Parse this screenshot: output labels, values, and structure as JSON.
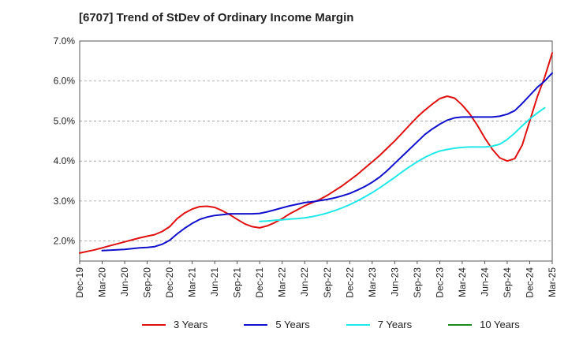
{
  "chart_data": {
    "type": "line",
    "title": "[6707]  Trend of StDev of Ordinary Income Margin",
    "xlabel": "",
    "ylabel": "",
    "x_ticks": [
      "Dec-19",
      "Mar-20",
      "Jun-20",
      "Sep-20",
      "Dec-20",
      "Mar-21",
      "Jun-21",
      "Sep-21",
      "Dec-21",
      "Mar-22",
      "Jun-22",
      "Sep-22",
      "Dec-22",
      "Mar-23",
      "Jun-23",
      "Sep-23",
      "Dec-23",
      "Mar-24",
      "Jun-24",
      "Sep-24",
      "Dec-24",
      "Mar-25"
    ],
    "y_ticks": [
      "2.0%",
      "3.0%",
      "4.0%",
      "5.0%",
      "6.0%",
      "7.0%"
    ],
    "ylim": [
      1.5,
      7.0
    ],
    "grid": "horizontal dashed",
    "legend_position": "bottom",
    "series": [
      {
        "name": "3 Years",
        "color": "#e01010",
        "points": [
          [
            "Dec-19",
            1.7
          ],
          [
            "Jan-20",
            1.74
          ],
          [
            "Feb-20",
            1.78
          ],
          [
            "Mar-20",
            1.83
          ],
          [
            "Apr-20",
            1.88
          ],
          [
            "May-20",
            1.93
          ],
          [
            "Jun-20",
            1.98
          ],
          [
            "Jul-20",
            2.03
          ],
          [
            "Aug-20",
            2.08
          ],
          [
            "Sep-20",
            2.12
          ],
          [
            "Oct-20",
            2.16
          ],
          [
            "Nov-20",
            2.24
          ],
          [
            "Dec-20",
            2.36
          ],
          [
            "Jan-21",
            2.56
          ],
          [
            "Feb-21",
            2.7
          ],
          [
            "Mar-21",
            2.8
          ],
          [
            "Apr-21",
            2.86
          ],
          [
            "May-21",
            2.87
          ],
          [
            "Jun-21",
            2.84
          ],
          [
            "Jul-21",
            2.76
          ],
          [
            "Aug-21",
            2.66
          ],
          [
            "Sep-21",
            2.54
          ],
          [
            "Oct-21",
            2.43
          ],
          [
            "Nov-21",
            2.36
          ],
          [
            "Dec-21",
            2.33
          ],
          [
            "Jan-22",
            2.38
          ],
          [
            "Feb-22",
            2.46
          ],
          [
            "Mar-22",
            2.56
          ],
          [
            "Apr-22",
            2.68
          ],
          [
            "May-22",
            2.78
          ],
          [
            "Jun-22",
            2.88
          ],
          [
            "Jul-22",
            2.96
          ],
          [
            "Aug-22",
            3.04
          ],
          [
            "Sep-22",
            3.14
          ],
          [
            "Oct-22",
            3.26
          ],
          [
            "Nov-22",
            3.38
          ],
          [
            "Dec-22",
            3.52
          ],
          [
            "Jan-23",
            3.66
          ],
          [
            "Feb-23",
            3.82
          ],
          [
            "Mar-23",
            3.98
          ],
          [
            "Apr-23",
            4.14
          ],
          [
            "May-23",
            4.32
          ],
          [
            "Jun-23",
            4.5
          ],
          [
            "Jul-23",
            4.7
          ],
          [
            "Aug-23",
            4.9
          ],
          [
            "Sep-23",
            5.1
          ],
          [
            "Oct-23",
            5.27
          ],
          [
            "Nov-23",
            5.42
          ],
          [
            "Dec-23",
            5.56
          ],
          [
            "Jan-24",
            5.62
          ],
          [
            "Feb-24",
            5.57
          ],
          [
            "Mar-24",
            5.4
          ],
          [
            "Apr-24",
            5.18
          ],
          [
            "May-24",
            4.9
          ],
          [
            "Jun-24",
            4.58
          ],
          [
            "Jul-24",
            4.3
          ],
          [
            "Aug-24",
            4.08
          ],
          [
            "Sep-24",
            4.0
          ],
          [
            "Oct-24",
            4.06
          ],
          [
            "Nov-24",
            4.4
          ],
          [
            "Dec-24",
            5.0
          ],
          [
            "Jan-25",
            5.6
          ],
          [
            "Feb-25",
            6.1
          ],
          [
            "Mar-25",
            6.7
          ]
        ]
      },
      {
        "name": "5 Years",
        "color": "#1010cc",
        "points": [
          [
            "Mar-20",
            1.76
          ],
          [
            "Apr-20",
            1.77
          ],
          [
            "May-20",
            1.78
          ],
          [
            "Jun-20",
            1.79
          ],
          [
            "Jul-20",
            1.81
          ],
          [
            "Aug-20",
            1.83
          ],
          [
            "Sep-20",
            1.84
          ],
          [
            "Oct-20",
            1.86
          ],
          [
            "Nov-20",
            1.92
          ],
          [
            "Dec-20",
            2.02
          ],
          [
            "Jan-21",
            2.18
          ],
          [
            "Feb-21",
            2.32
          ],
          [
            "Mar-21",
            2.44
          ],
          [
            "Apr-21",
            2.54
          ],
          [
            "May-21",
            2.6
          ],
          [
            "Jun-21",
            2.64
          ],
          [
            "Jul-21",
            2.66
          ],
          [
            "Aug-21",
            2.68
          ],
          [
            "Sep-21",
            2.68
          ],
          [
            "Oct-21",
            2.68
          ],
          [
            "Nov-21",
            2.68
          ],
          [
            "Dec-21",
            2.69
          ],
          [
            "Jan-22",
            2.73
          ],
          [
            "Feb-22",
            2.78
          ],
          [
            "Mar-22",
            2.83
          ],
          [
            "Apr-22",
            2.88
          ],
          [
            "May-22",
            2.92
          ],
          [
            "Jun-22",
            2.96
          ],
          [
            "Jul-22",
            2.98
          ],
          [
            "Aug-22",
            3.01
          ],
          [
            "Sep-22",
            3.04
          ],
          [
            "Oct-22",
            3.08
          ],
          [
            "Nov-22",
            3.13
          ],
          [
            "Dec-22",
            3.19
          ],
          [
            "Jan-23",
            3.27
          ],
          [
            "Feb-23",
            3.36
          ],
          [
            "Mar-23",
            3.47
          ],
          [
            "Apr-23",
            3.6
          ],
          [
            "May-23",
            3.76
          ],
          [
            "Jun-23",
            3.94
          ],
          [
            "Jul-23",
            4.12
          ],
          [
            "Aug-23",
            4.3
          ],
          [
            "Sep-23",
            4.48
          ],
          [
            "Oct-23",
            4.66
          ],
          [
            "Nov-23",
            4.8
          ],
          [
            "Dec-23",
            4.92
          ],
          [
            "Jan-24",
            5.02
          ],
          [
            "Feb-24",
            5.08
          ],
          [
            "Mar-24",
            5.1
          ],
          [
            "Apr-24",
            5.1
          ],
          [
            "May-24",
            5.1
          ],
          [
            "Jun-24",
            5.1
          ],
          [
            "Jul-24",
            5.1
          ],
          [
            "Aug-24",
            5.12
          ],
          [
            "Sep-24",
            5.17
          ],
          [
            "Oct-24",
            5.26
          ],
          [
            "Nov-24",
            5.44
          ],
          [
            "Dec-24",
            5.64
          ],
          [
            "Jan-25",
            5.84
          ],
          [
            "Feb-25",
            6.0
          ],
          [
            "Mar-25",
            6.2
          ]
        ]
      },
      {
        "name": "7 Years",
        "color": "#20e8e8",
        "points": [
          [
            "Dec-21",
            2.49
          ],
          [
            "Jan-22",
            2.5
          ],
          [
            "Feb-22",
            2.52
          ],
          [
            "Mar-22",
            2.53
          ],
          [
            "Apr-22",
            2.55
          ],
          [
            "May-22",
            2.56
          ],
          [
            "Jun-22",
            2.58
          ],
          [
            "Jul-22",
            2.61
          ],
          [
            "Aug-22",
            2.65
          ],
          [
            "Sep-22",
            2.7
          ],
          [
            "Oct-22",
            2.76
          ],
          [
            "Nov-22",
            2.83
          ],
          [
            "Dec-22",
            2.91
          ],
          [
            "Jan-23",
            3.0
          ],
          [
            "Feb-23",
            3.1
          ],
          [
            "Mar-23",
            3.21
          ],
          [
            "Apr-23",
            3.33
          ],
          [
            "May-23",
            3.46
          ],
          [
            "Jun-23",
            3.59
          ],
          [
            "Jul-23",
            3.73
          ],
          [
            "Aug-23",
            3.86
          ],
          [
            "Sep-23",
            3.98
          ],
          [
            "Oct-23",
            4.09
          ],
          [
            "Nov-23",
            4.18
          ],
          [
            "Dec-23",
            4.25
          ],
          [
            "Jan-24",
            4.29
          ],
          [
            "Feb-24",
            4.32
          ],
          [
            "Mar-24",
            4.34
          ],
          [
            "Apr-24",
            4.35
          ],
          [
            "May-24",
            4.35
          ],
          [
            "Jun-24",
            4.35
          ],
          [
            "Jul-24",
            4.37
          ],
          [
            "Aug-24",
            4.42
          ],
          [
            "Sep-24",
            4.54
          ],
          [
            "Oct-24",
            4.7
          ],
          [
            "Nov-24",
            4.88
          ],
          [
            "Dec-24",
            5.05
          ],
          [
            "Jan-25",
            5.2
          ],
          [
            "Feb-25",
            5.33
          ]
        ]
      },
      {
        "name": "10 Years",
        "color": "#1a8a1a",
        "points": []
      }
    ]
  }
}
